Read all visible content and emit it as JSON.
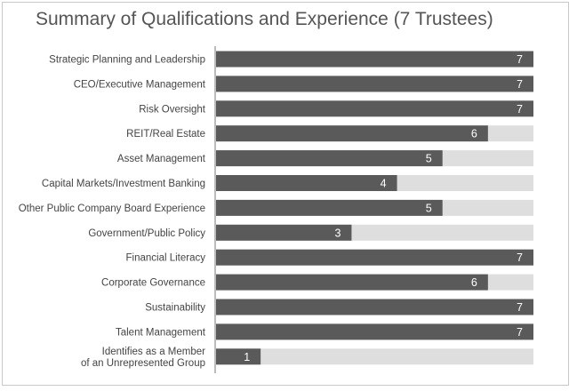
{
  "chart_data": {
    "type": "bar",
    "orientation": "horizontal",
    "title": "Summary of Qualifications and Experience (7 Trustees)",
    "categories": [
      [
        "Strategic Planning and Leadership"
      ],
      [
        "CEO/Executive Management"
      ],
      [
        "Risk Oversight"
      ],
      [
        "REIT/Real Estate"
      ],
      [
        "Asset Management"
      ],
      [
        "Capital Markets/Investment Banking"
      ],
      [
        "Other Public Company Board Experience"
      ],
      [
        "Government/Public Policy"
      ],
      [
        "Financial Literacy"
      ],
      [
        "Corporate Governance"
      ],
      [
        "Sustainability"
      ],
      [
        "Talent Management"
      ],
      [
        "Identifies as a Member",
        "of an Unrepresented Group"
      ]
    ],
    "values": [
      7,
      7,
      7,
      6,
      5,
      4,
      5,
      3,
      7,
      6,
      7,
      7,
      1
    ],
    "max": 7,
    "xlim": [
      0,
      7
    ],
    "grid": false,
    "legend": "none",
    "colors": {
      "bar": "#5a5a5a",
      "track": "#dedede",
      "axis": "#7a7a7a",
      "label": "#444444",
      "value": "#ffffff",
      "title": "#555555"
    }
  }
}
